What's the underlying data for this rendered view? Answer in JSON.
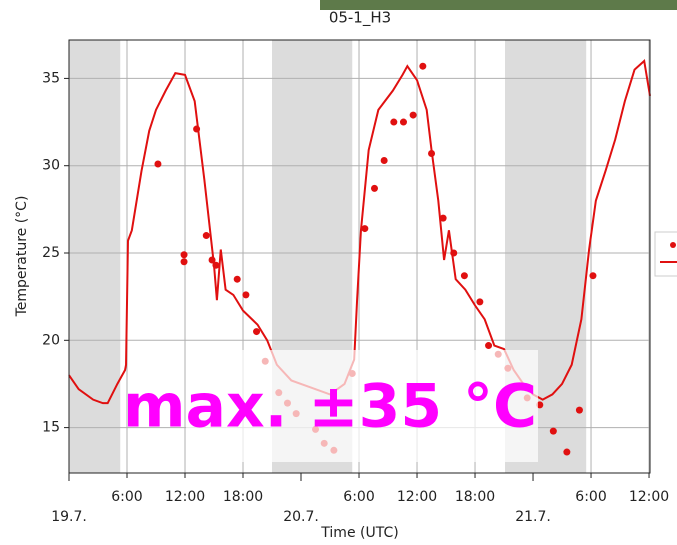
{
  "chart_data": {
    "type": "line_scatter",
    "title": "05-1_H3",
    "y_label": "Temperature (°C)",
    "x_label": "Time (UTC)",
    "annotation": "max. ±35 °C",
    "xlim": [
      0,
      60.1
    ],
    "ylim": [
      12.4,
      37.2
    ],
    "yticks": [
      15,
      20,
      25,
      30,
      35
    ],
    "xticks": [
      {
        "value": 6,
        "label": "6:00"
      },
      {
        "value": 12,
        "label": "12:00"
      },
      {
        "value": 18,
        "label": "18:00"
      },
      {
        "value": 30,
        "label": "6:00"
      },
      {
        "value": 36,
        "label": "12:00"
      },
      {
        "value": 42,
        "label": "18:00"
      },
      {
        "value": 54,
        "label": "6:00"
      },
      {
        "value": 60,
        "label": "12:00"
      }
    ],
    "xticks_major": [
      {
        "value": 0,
        "label": "19.7."
      },
      {
        "value": 24,
        "label": "20.7."
      },
      {
        "value": 48,
        "label": "21.7."
      }
    ],
    "grid": true,
    "shaded_regions": [
      [
        0,
        5.3
      ],
      [
        21,
        29.3
      ],
      [
        45.1,
        53.5
      ]
    ],
    "series": [
      {
        "kind": "line",
        "color": "#e01010",
        "x": [
          0,
          1,
          2.5,
          3.5,
          4,
          5,
          5.8,
          5.9,
          6.1,
          6.5,
          7.5,
          8.3,
          9,
          10,
          11,
          12,
          13,
          14,
          15,
          15.3,
          15.7,
          16.2,
          17,
          18,
          19.5,
          20.5,
          21.5,
          23,
          25,
          27,
          28.5,
          29.5,
          29.8,
          30.2,
          31,
          32,
          33.5,
          34.5,
          35,
          36,
          37,
          37.5,
          38.2,
          38.8,
          39.3,
          40,
          41,
          42,
          43,
          44,
          45,
          46,
          47,
          48,
          49,
          50,
          51,
          52,
          53,
          53.8,
          54.5,
          55.5,
          56.5,
          57.5,
          58.5,
          59.5,
          60.1
        ],
        "values": [
          18.0,
          17.2,
          16.6,
          16.4,
          16.4,
          17.5,
          18.3,
          18.6,
          25.7,
          26.3,
          29.7,
          32.0,
          33.2,
          34.3,
          35.3,
          35.2,
          33.7,
          29.2,
          24.3,
          22.3,
          25.2,
          22.9,
          22.6,
          21.7,
          20.9,
          20.0,
          18.6,
          17.7,
          17.3,
          16.9,
          17.5,
          18.9,
          22.3,
          26.3,
          30.9,
          33.2,
          34.3,
          35.2,
          35.7,
          34.9,
          33.2,
          30.9,
          28.0,
          24.6,
          26.3,
          23.5,
          22.9,
          22.0,
          21.2,
          19.7,
          19.5,
          18.3,
          17.5,
          16.9,
          16.6,
          16.9,
          17.5,
          18.6,
          21.2,
          25.2,
          28.0,
          29.7,
          31.5,
          33.7,
          35.5,
          36.0,
          34.0
        ]
      },
      {
        "kind": "scatter",
        "color": "#e01010",
        "x": [
          9.2,
          11.9,
          11.9,
          13.2,
          14.2,
          14.8,
          15.2,
          17.4,
          18.3,
          19.4,
          20.3,
          21.7,
          22.6,
          23.5,
          25.5,
          26.4,
          27.4,
          29.3,
          30.6,
          31.6,
          32.6,
          33.6,
          34.6,
          35.6,
          36.6,
          37.5,
          38.7,
          39.8,
          40.9,
          42.5,
          43.4,
          44.4,
          45.4,
          47.4,
          48.7,
          50.1,
          51.5,
          52.8,
          54.2
        ],
        "values": [
          30.1,
          24.9,
          24.5,
          32.1,
          26.0,
          24.6,
          24.3,
          23.5,
          22.6,
          20.5,
          18.8,
          17.0,
          16.4,
          15.8,
          14.9,
          14.1,
          13.7,
          18.1,
          26.4,
          28.7,
          30.3,
          32.5,
          32.5,
          32.9,
          35.7,
          30.7,
          27.0,
          25.0,
          23.7,
          22.2,
          19.7,
          19.2,
          18.4,
          16.7,
          16.3,
          14.8,
          13.6,
          16.0,
          23.7
        ]
      }
    ]
  }
}
